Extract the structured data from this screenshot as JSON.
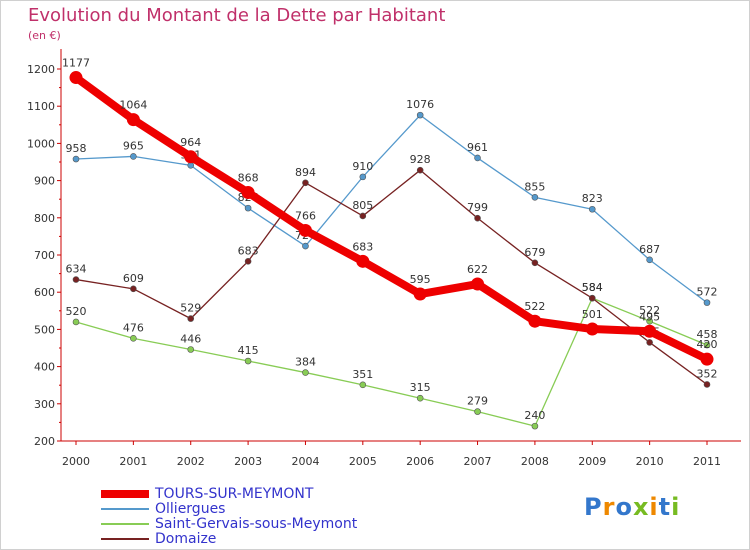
{
  "title": "Evolution du Montant de la Dette par Habitant",
  "unit": "(en €)",
  "logo": "Proxiti",
  "chart_data": {
    "type": "line",
    "title": "Evolution du Montant de la Dette par Habitant",
    "ylabel": "(en €)",
    "x": [
      "2000",
      "2001",
      "2002",
      "2003",
      "2004",
      "2005",
      "2006",
      "2007",
      "2008",
      "2009",
      "2010",
      "2011"
    ],
    "yticks": [
      "200",
      "300",
      "400",
      "500",
      "600",
      "700",
      "800",
      "900",
      "1000",
      "1100",
      "1200"
    ],
    "ylim": [
      200,
      1200
    ],
    "grid": false,
    "legend": "bottom-left",
    "series": [
      {
        "name": "Olliergues",
        "color": "#5599cc",
        "values": [
          958,
          965,
          941,
          826,
          724,
          910,
          1076,
          961,
          855,
          823,
          687,
          572
        ],
        "labels": [
          "958",
          "965",
          "941",
          "826",
          "724",
          "910",
          "1076",
          "961",
          "855",
          "823",
          "687",
          "572"
        ]
      },
      {
        "name": "Saint-Gervais-sous-Meymont",
        "color": "#88cc55",
        "values": [
          520,
          476,
          446,
          415,
          384,
          351,
          315,
          279,
          240,
          584,
          522,
          458
        ],
        "labels": [
          "520",
          "476",
          "446",
          "415",
          "384",
          "351",
          "315",
          "279",
          "240",
          "584",
          "522",
          "458"
        ]
      },
      {
        "name": "Domaize",
        "color": "#772222",
        "values": [
          634,
          609,
          529,
          683,
          894,
          805,
          928,
          799,
          679,
          584,
          465,
          352
        ],
        "labels": [
          "634",
          "609",
          "529",
          "683",
          "894",
          "805",
          "928",
          "799",
          "679",
          "584",
          "465",
          "352"
        ]
      },
      {
        "name": "TOURS-SUR-MEYMONT",
        "color": "#ee0000",
        "values": [
          1177,
          1064,
          964,
          868,
          766,
          683,
          595,
          622,
          522,
          501,
          495,
          420
        ],
        "labels": [
          "1177",
          "1064",
          "964",
          "868",
          "766",
          "683",
          "595",
          "622",
          "522",
          "501",
          "495",
          "420"
        ]
      }
    ],
    "legend_order": [
      "TOURS-SUR-MEYMONT",
      "Olliergues",
      "Saint-Gervais-sous-Meymont",
      "Domaize"
    ]
  }
}
